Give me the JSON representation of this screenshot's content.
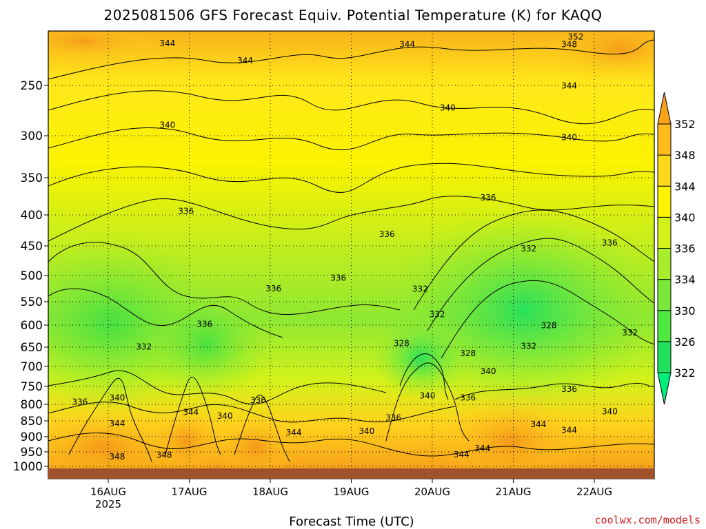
{
  "title": "2025081506 GFS Forecast Equiv. Potential Temperature (K) for KAQQ",
  "credit": "coolwx.com/models",
  "colors": {
    "ground": "#a0522d",
    "scale": [
      "#00ee7a",
      "#22e05c",
      "#4ee83e",
      "#7ae838",
      "#a8ee2a",
      "#d4f21a",
      "#fbf300",
      "#ffd81c",
      "#ffba1e",
      "#f8a21a"
    ]
  },
  "chart_data": {
    "type": "heatmap",
    "title": "2025081506 GFS Forecast Equiv. Potential Temperature (K) for KAQQ",
    "xlabel": "Forecast Time (UTC)",
    "ylabel": "",
    "y_ticks": [
      250,
      300,
      350,
      400,
      450,
      500,
      550,
      600,
      650,
      700,
      750,
      800,
      850,
      900,
      950,
      1000
    ],
    "x_ticks": [
      "16AUG",
      "17AUG",
      "18AUG",
      "19AUG",
      "20AUG",
      "21AUG",
      "22AUG"
    ],
    "x_year_label": "2025",
    "colorbar_ticks": [
      322,
      326,
      330,
      334,
      336,
      340,
      344,
      348,
      352
    ],
    "contour_labels": [
      {
        "text": "344",
        "time_days": 0.73,
        "pressure": 212
      },
      {
        "text": "344",
        "time_days": 1.69,
        "pressure": 228
      },
      {
        "text": "344",
        "time_days": 3.69,
        "pressure": 213
      },
      {
        "text": "348",
        "time_days": 5.69,
        "pressure": 213
      },
      {
        "text": "352",
        "time_days": 5.77,
        "pressure": 206
      },
      {
        "text": "344",
        "time_days": 5.69,
        "pressure": 251
      },
      {
        "text": "340",
        "time_days": 0.73,
        "pressure": 290
      },
      {
        "text": "340",
        "time_days": 4.19,
        "pressure": 273
      },
      {
        "text": "340",
        "time_days": 5.69,
        "pressure": 303
      },
      {
        "text": "336",
        "time_days": 0.96,
        "pressure": 396
      },
      {
        "text": "336",
        "time_days": 4.69,
        "pressure": 378
      },
      {
        "text": "336",
        "time_days": 3.44,
        "pressure": 432
      },
      {
        "text": "332",
        "time_days": 5.19,
        "pressure": 456
      },
      {
        "text": "336",
        "time_days": 6.19,
        "pressure": 446
      },
      {
        "text": "336",
        "time_days": 2.04,
        "pressure": 526
      },
      {
        "text": "336",
        "time_days": 2.84,
        "pressure": 506
      },
      {
        "text": "332",
        "time_days": 3.85,
        "pressure": 527
      },
      {
        "text": "332",
        "time_days": 4.06,
        "pressure": 579
      },
      {
        "text": "328",
        "time_days": 5.44,
        "pressure": 602
      },
      {
        "text": "332",
        "time_days": 6.44,
        "pressure": 619
      },
      {
        "text": "336",
        "time_days": 1.19,
        "pressure": 599
      },
      {
        "text": "332",
        "time_days": 0.44,
        "pressure": 651
      },
      {
        "text": "328",
        "time_days": 3.62,
        "pressure": 643
      },
      {
        "text": "332",
        "time_days": 5.19,
        "pressure": 649
      },
      {
        "text": "328",
        "time_days": 4.44,
        "pressure": 668
      },
      {
        "text": "340",
        "time_days": 4.69,
        "pressure": 714
      },
      {
        "text": "336",
        "time_days": 5.69,
        "pressure": 760
      },
      {
        "text": "336",
        "time_days": 4.44,
        "pressure": 784
      },
      {
        "text": "340",
        "time_days": 3.94,
        "pressure": 778
      },
      {
        "text": "336",
        "time_days": -0.35,
        "pressure": 795
      },
      {
        "text": "340",
        "time_days": 0.11,
        "pressure": 784
      },
      {
        "text": "336",
        "time_days": 1.85,
        "pressure": 790
      },
      {
        "text": "344",
        "time_days": 1.02,
        "pressure": 826
      },
      {
        "text": "340",
        "time_days": 1.44,
        "pressure": 837
      },
      {
        "text": "340",
        "time_days": 6.19,
        "pressure": 824
      },
      {
        "text": "336",
        "time_days": 3.52,
        "pressure": 843
      },
      {
        "text": "344",
        "time_days": 0.11,
        "pressure": 861
      },
      {
        "text": "344",
        "time_days": 2.29,
        "pressure": 889
      },
      {
        "text": "340",
        "time_days": 3.19,
        "pressure": 885
      },
      {
        "text": "344",
        "time_days": 5.31,
        "pressure": 863
      },
      {
        "text": "344",
        "time_days": 5.69,
        "pressure": 882
      },
      {
        "text": "344",
        "time_days": 4.62,
        "pressure": 941
      },
      {
        "text": "344",
        "time_days": 4.36,
        "pressure": 962
      },
      {
        "text": "348",
        "time_days": 0.11,
        "pressure": 969
      },
      {
        "text": "348",
        "time_days": 0.69,
        "pressure": 963
      }
    ]
  }
}
